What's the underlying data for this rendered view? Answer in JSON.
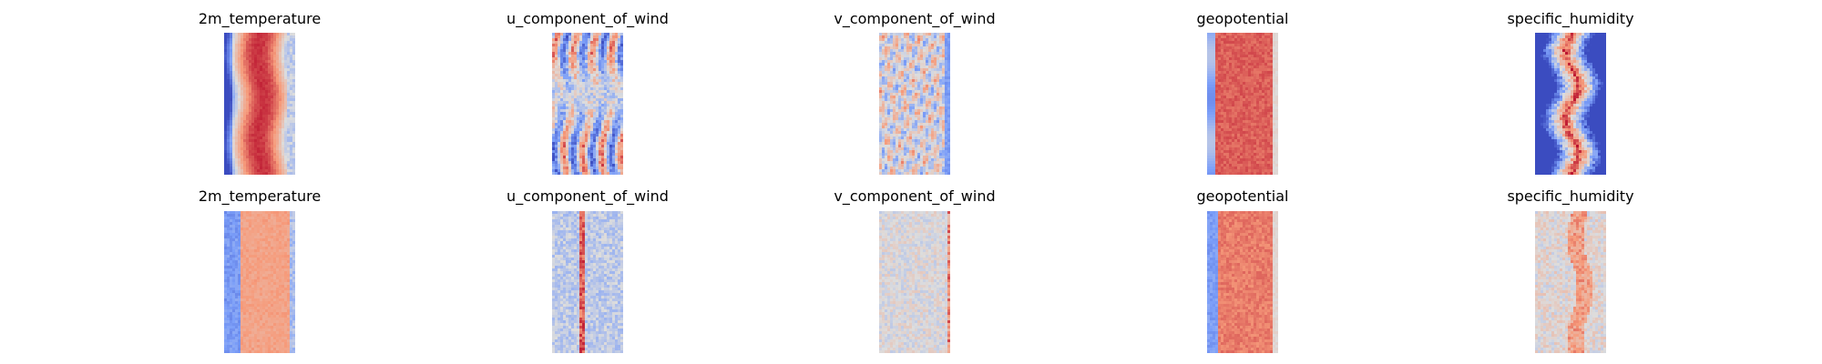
{
  "chart_data": [
    {
      "type": "heatmap",
      "layout": "2x5 grid of image panels",
      "colormap": "coolwarm",
      "axes_visible": false,
      "rows": [
        {
          "panels": [
            {
              "title": "2m_temperature",
              "pattern": "temp"
            },
            {
              "title": "u_component_of_wind",
              "pattern": "u"
            },
            {
              "title": "v_component_of_wind",
              "pattern": "v"
            },
            {
              "title": "geopotential",
              "pattern": "geo"
            },
            {
              "title": "specific_humidity",
              "pattern": "hum"
            }
          ]
        },
        {
          "panels": [
            {
              "title": "2m_temperature",
              "pattern": "temp_diff"
            },
            {
              "title": "u_component_of_wind",
              "pattern": "u_diff"
            },
            {
              "title": "v_component_of_wind",
              "pattern": "v_diff"
            },
            {
              "title": "geopotential",
              "pattern": "geo_diff"
            },
            {
              "title": "specific_humidity",
              "pattern": "hum_diff"
            }
          ]
        }
      ]
    }
  ]
}
